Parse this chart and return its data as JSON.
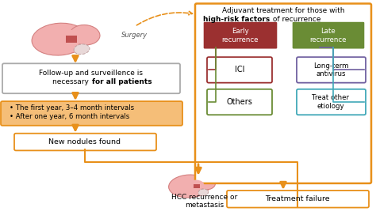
{
  "bg_color": "#ffffff",
  "surgery_label": "Surgery",
  "followup_line1": "Follow-up and surveillence is",
  "followup_line2_normal": "necessary ",
  "followup_line2_bold": "for all patients",
  "interval_line1": "• The first year, 3–4 month intervals",
  "interval_line2": "• After one year, 6 month intervals",
  "new_nodules_text": "New nodules found",
  "treatment_failure_text": "Treatment failure",
  "adjuvant_line1": "Adjuvant treatment for those with",
  "adjuvant_line2_bold": "high-risk factors",
  "adjuvant_line2_normal": " of recurrence",
  "early_text": "Early\nrecurrence",
  "late_text": "Late\nrecurrence",
  "ici_text": "ICI",
  "others_text": "Others",
  "longterm_text": "Long-term\nantivirus",
  "treat_other_text": "Treat other\netiology",
  "hcc_text": "HCC recurrence or\nmetastasis",
  "arrow_color": "#E8901A",
  "liver_main": "#F2AFAF",
  "liver_dark": "#C05050",
  "liver_outline": "#D48080",
  "gallbladder_fill": "#E8D8D8",
  "gallbladder_edge": "#C0A0A0",
  "followup_edge": "#AAAAAA",
  "interval_fill": "#F5BE78",
  "interval_edge": "#E8901A",
  "nodules_edge": "#E8901A",
  "failure_edge": "#E8901A",
  "adjuvant_edge": "#E8901A",
  "early_fill": "#9B3030",
  "late_fill": "#6A8C35",
  "ici_edge": "#9B3030",
  "others_edge": "#6A8C35",
  "longterm_edge": "#7060A0",
  "treat_edge": "#40A8B8",
  "bracket_early": "#9B3030",
  "bracket_late": "#6A8C35",
  "bracket_longterm": "#7060A0",
  "bracket_treat": "#40A8B8"
}
